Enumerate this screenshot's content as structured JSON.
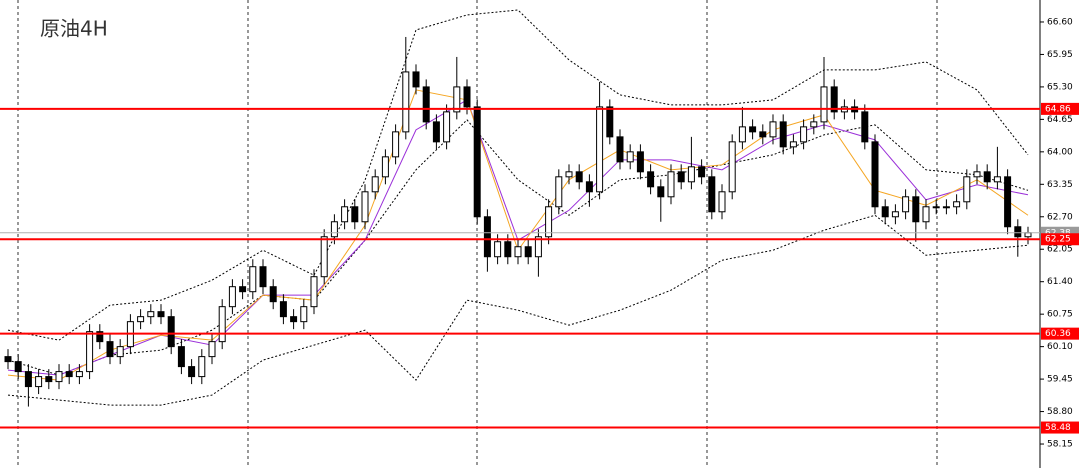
{
  "chart_data": {
    "type": "candlestick",
    "title": "原油4H",
    "ylim": [
      57.67,
      67.04
    ],
    "yticks": [
      {
        "value": 66.6,
        "label": "66.60"
      },
      65.95,
      {
        "value": 65.3,
        "label": "65.30"
      },
      64.65,
      {
        "value": 64.0,
        "label": "64.00"
      },
      63.35,
      {
        "value": 62.7,
        "label": "62.70"
      },
      62.05,
      {
        "value": 61.4,
        "label": "61.40"
      },
      60.75,
      {
        "value": 60.1,
        "label": "60.10"
      },
      59.45,
      {
        "value": 58.8,
        "label": "58.80"
      },
      58.15
    ],
    "up_color": "#ffffff",
    "down_color": "#000000",
    "candles": {
      "open": [
        59.9,
        59.8,
        59.6,
        59.3,
        59.5,
        59.4,
        59.6,
        59.5,
        59.6,
        60.4,
        60.2,
        59.9,
        60.1,
        60.6,
        60.7,
        60.8,
        60.7,
        60.1,
        59.7,
        59.5,
        59.9,
        60.2,
        60.9,
        61.3,
        61.2,
        61.7,
        61.3,
        61.0,
        60.7,
        60.6,
        60.9,
        61.5,
        62.3,
        62.6,
        62.9,
        62.6,
        63.2,
        63.5,
        63.9,
        64.4,
        65.6,
        65.3,
        64.6,
        64.2,
        64.8,
        65.3,
        64.9,
        62.7,
        61.9,
        62.2,
        61.9,
        62.1,
        61.9,
        62.3,
        62.9,
        63.5,
        63.6,
        63.4,
        63.2,
        64.9,
        64.3,
        63.8,
        64.0,
        63.6,
        63.3,
        63.1,
        63.6,
        63.4,
        63.7,
        63.5,
        62.8,
        63.2,
        64.2,
        64.5,
        64.4,
        64.3,
        64.6,
        64.1,
        64.2,
        64.5,
        64.6,
        65.3,
        64.8,
        64.9,
        64.8,
        64.2,
        62.9,
        62.7,
        62.8,
        63.1,
        62.6,
        62.9,
        62.9,
        62.9,
        63.0,
        63.5,
        63.6,
        63.4,
        63.5,
        62.5,
        62.3
      ],
      "high": [
        60.05,
        59.95,
        59.75,
        59.65,
        59.65,
        59.75,
        59.75,
        59.75,
        60.55,
        60.55,
        60.35,
        60.25,
        60.75,
        60.85,
        60.95,
        60.95,
        60.85,
        60.25,
        59.85,
        60.05,
        60.35,
        61.05,
        61.45,
        61.45,
        61.85,
        61.85,
        61.45,
        61.15,
        60.85,
        61.05,
        61.65,
        62.45,
        62.75,
        63.05,
        63.05,
        63.35,
        63.65,
        64.05,
        64.55,
        66.3,
        65.75,
        65.45,
        64.75,
        64.95,
        65.9,
        65.45,
        65.05,
        62.85,
        62.35,
        62.35,
        62.25,
        62.25,
        62.45,
        63.05,
        63.65,
        63.75,
        63.75,
        63.55,
        65.4,
        65.05,
        64.45,
        64.15,
        64.15,
        63.75,
        63.45,
        63.75,
        63.75,
        64.3,
        63.85,
        63.65,
        63.35,
        64.35,
        64.9,
        64.65,
        64.55,
        64.75,
        64.75,
        64.35,
        64.65,
        64.75,
        65.9,
        65.45,
        65.05,
        65.05,
        64.95,
        64.35,
        63.05,
        62.95,
        63.25,
        63.25,
        63.05,
        63.05,
        63.05,
        63.15,
        63.65,
        63.75,
        63.75,
        64.1,
        63.65,
        62.65,
        62.5
      ],
      "low": [
        59.65,
        59.45,
        58.9,
        59.15,
        59.25,
        59.25,
        59.35,
        59.35,
        59.45,
        60.05,
        59.75,
        59.75,
        59.95,
        60.45,
        60.55,
        60.55,
        59.95,
        59.55,
        59.35,
        59.35,
        59.75,
        60.05,
        60.75,
        61.05,
        61.05,
        61.15,
        60.85,
        60.55,
        60.45,
        60.45,
        60.75,
        61.35,
        62.15,
        62.45,
        62.45,
        62.45,
        63.05,
        63.35,
        63.75,
        64.25,
        65.15,
        64.45,
        64.05,
        64.05,
        64.65,
        64.75,
        62.55,
        61.6,
        61.75,
        61.75,
        61.75,
        61.75,
        61.5,
        62.15,
        62.75,
        63.35,
        63.25,
        62.9,
        63.05,
        64.15,
        63.65,
        63.65,
        63.45,
        63.15,
        62.6,
        62.95,
        63.25,
        63.25,
        63.35,
        62.65,
        62.65,
        63.05,
        64.05,
        64.25,
        64.15,
        64.15,
        63.95,
        63.95,
        64.05,
        64.35,
        64.45,
        64.65,
        64.65,
        64.65,
        64.05,
        62.75,
        62.55,
        62.55,
        62.65,
        62.2,
        62.45,
        62.75,
        62.75,
        62.75,
        62.85,
        63.35,
        63.25,
        63.25,
        62.35,
        61.9,
        62.15
      ],
      "close": [
        59.8,
        59.6,
        59.3,
        59.5,
        59.4,
        59.6,
        59.5,
        59.6,
        60.4,
        60.2,
        59.9,
        60.1,
        60.6,
        60.7,
        60.8,
        60.7,
        60.1,
        59.7,
        59.5,
        59.9,
        60.2,
        60.9,
        61.3,
        61.2,
        61.7,
        61.3,
        61.0,
        60.7,
        60.6,
        60.9,
        61.5,
        62.3,
        62.6,
        62.9,
        62.6,
        63.2,
        63.5,
        63.9,
        64.4,
        65.6,
        65.3,
        64.6,
        64.2,
        64.8,
        65.3,
        64.9,
        62.7,
        61.9,
        62.2,
        61.9,
        62.1,
        61.9,
        62.3,
        62.9,
        63.5,
        63.6,
        63.4,
        63.2,
        64.9,
        64.3,
        63.8,
        64.0,
        63.6,
        63.3,
        63.1,
        63.6,
        63.4,
        63.7,
        63.5,
        62.8,
        63.2,
        64.2,
        64.5,
        64.4,
        64.3,
        64.6,
        64.1,
        64.2,
        64.5,
        64.6,
        65.3,
        64.8,
        64.9,
        64.8,
        64.2,
        62.9,
        62.7,
        62.8,
        63.1,
        62.6,
        62.9,
        62.9,
        62.9,
        63.0,
        63.5,
        63.6,
        63.4,
        63.5,
        62.5,
        62.3,
        62.38
      ]
    },
    "indicator_x": [
      0,
      5,
      10,
      15,
      20,
      25,
      30,
      35,
      40,
      45,
      50,
      55,
      60,
      65,
      70,
      75,
      80,
      85,
      90,
      95,
      100
    ],
    "indicators": [
      {
        "color": "#000000",
        "dashed": true,
        "values": [
          60.43,
          60.23,
          60.93,
          61.03,
          61.43,
          62.03,
          61.53,
          63.43,
          66.44,
          66.74,
          66.84,
          65.84,
          65.14,
          64.94,
          64.94,
          65.04,
          65.64,
          65.64,
          65.8,
          65.24,
          63.94
        ]
      },
      {
        "color": "#000000",
        "dashed": true,
        "values": [
          59.83,
          59.53,
          59.93,
          60.03,
          60.43,
          61.13,
          61.03,
          62.23,
          63.64,
          64.64,
          63.44,
          62.73,
          63.44,
          63.54,
          63.74,
          63.94,
          64.34,
          64.54,
          63.64,
          63.54,
          63.23
        ]
      },
      {
        "color": "#000000",
        "dashed": true,
        "values": [
          59.13,
          59.03,
          58.93,
          58.93,
          59.13,
          59.83,
          60.13,
          60.43,
          59.43,
          61.03,
          60.83,
          60.53,
          60.83,
          61.23,
          61.83,
          62.03,
          62.43,
          62.73,
          61.93,
          62.03,
          62.13
        ]
      },
      {
        "color": "#9b30d9",
        "dashed": false,
        "values": [
          59.63,
          59.53,
          59.93,
          60.33,
          60.13,
          61.13,
          61.13,
          62.23,
          64.44,
          65.04,
          62.23,
          62.83,
          63.84,
          63.84,
          63.64,
          64.24,
          64.54,
          64.24,
          63.04,
          63.34,
          63.14
        ]
      },
      {
        "color": "#f5a623",
        "dashed": false,
        "values": [
          59.53,
          59.43,
          60.03,
          60.33,
          60.23,
          61.13,
          61.03,
          62.53,
          65.24,
          65.04,
          62.03,
          63.44,
          64.04,
          63.64,
          63.74,
          64.44,
          64.74,
          63.23,
          62.93,
          63.44,
          62.73
        ]
      }
    ],
    "levels": [
      64.86,
      62.25,
      60.36,
      58.48
    ],
    "level_color": "#ff0000",
    "current_price": 62.38
  }
}
